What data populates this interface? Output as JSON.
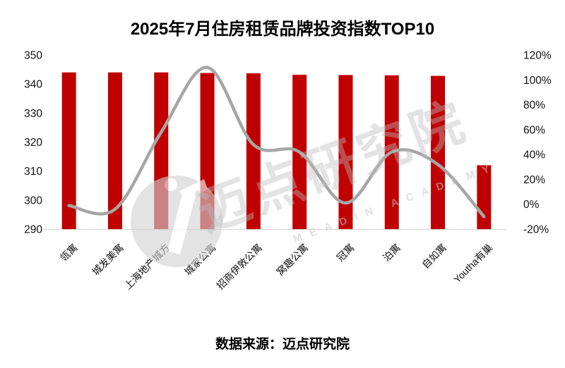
{
  "title": "2025年7月住房租赁品牌投资指数TOP10",
  "footer": {
    "source_label": "数据来源：迈点研究院"
  },
  "watermark": {
    "brand_text": "迈点研究院",
    "brand_letters": "MEADIN ACADEMY"
  },
  "chart_data": {
    "type": "combo_bar_line",
    "title": "2025年7月住房租赁品牌投资指数TOP10",
    "categories": [
      "瓴寓",
      "城发美寓",
      "上海地产城方",
      "城家公寓",
      "招商伊敦公寓",
      "窝趣公寓",
      "冠寓",
      "泊寓",
      "自如寓",
      "Youtha有巢"
    ],
    "bar_series": {
      "axis": "left",
      "values": [
        344,
        344,
        344,
        343.8,
        343.7,
        343.2,
        343.1,
        343,
        342.8,
        312
      ]
    },
    "line_series": {
      "axis": "right",
      "values_percent": [
        -1,
        -4,
        58,
        110,
        48,
        42,
        1,
        42,
        32,
        -10
      ]
    },
    "left_axis": {
      "min": 290,
      "max": 350,
      "step": 10,
      "ticks": [
        "350",
        "340",
        "330",
        "320",
        "310",
        "300",
        "290"
      ]
    },
    "right_axis": {
      "min": -20,
      "max": 120,
      "step": 20,
      "ticks": [
        "120%",
        "100%",
        "80%",
        "60%",
        "40%",
        "20%",
        "0%",
        "-20%"
      ]
    },
    "grid": false,
    "legend": false,
    "colors": {
      "bar": "#C00000",
      "line": "#A6A6A6",
      "axis_line": "#D9D9D9",
      "text": "#111111",
      "watermark": "#CDCDCD"
    }
  }
}
